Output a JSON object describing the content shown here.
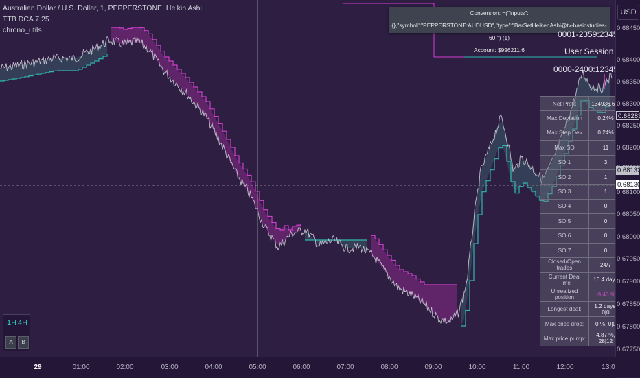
{
  "legend": {
    "symbol": "Australian Dollar / U.S. Dollar, 1, PEPPERSTONE, Heikin Ashi",
    "indicator1": "TTB DCA 7.25",
    "indicator2": "chrono_utils"
  },
  "currency_button": "USD",
  "conversion_box": {
    "line1": "Conversion: =(\"inputs\":{},\"symbol\":\"PEPPERSTONE:AUDUSD\",\"type\":\"BarSetHeikenAshi@tv-basicstudies-60!\") (1)",
    "line2": "Account: $996211.6"
  },
  "session": {
    "line_top": "0001-2359:23456",
    "user_session": "User Session",
    "line_bottom": "0000-2400:1234567"
  },
  "price_axis": {
    "ticks": [
      "0.68450",
      "0.68400",
      "0.68350",
      "0.68300",
      "0.68250",
      "0.68200",
      "0.68150",
      "0.68100",
      "0.68050",
      "0.68000",
      "0.67950",
      "0.67900",
      "0.67850",
      "0.67800",
      "0.67750"
    ],
    "labels": {
      "current_dark": "0.68283",
      "label_grey": "0.68132",
      "label_white": "0.68130"
    }
  },
  "time_axis": {
    "ticks": [
      "29",
      "01:00",
      "02:00",
      "03:00",
      "04:00",
      "05:00",
      "06:00",
      "07:00",
      "08:00",
      "09:00",
      "10:00",
      "11:00",
      "12:00",
      "13:0"
    ]
  },
  "stats": [
    {
      "label": "Net Profit",
      "value": "134936.6%"
    },
    {
      "label": "Max Deviation",
      "value": "0.24%"
    },
    {
      "label": "Max Step Dev",
      "value": "0.24%"
    },
    {
      "label": "Max SO",
      "value": "11"
    },
    {
      "label": "SO 1",
      "value": "3"
    },
    {
      "label": "SO 2",
      "value": "1"
    },
    {
      "label": "SO 3",
      "value": "1"
    },
    {
      "label": "SO 4",
      "value": "0"
    },
    {
      "label": "SO 5",
      "value": "0"
    },
    {
      "label": "SO 6",
      "value": "0"
    },
    {
      "label": "SO 7",
      "value": "0"
    },
    {
      "label": "Closed/Open trades",
      "value": "24/7"
    },
    {
      "label": "Current Deal Time",
      "value": "16.4 days"
    },
    {
      "label": "Unrealized position",
      "value": "-9.43 %"
    },
    {
      "label": "Longest deal:",
      "value": "1.2 days, 0|0"
    },
    {
      "label": "Max price drop:",
      "value": "0 %, 0|0"
    },
    {
      "label": "Max price pump:",
      "value": "4.87 %, 28|12"
    }
  ],
  "timeframes": {
    "tf1": "1H",
    "tf2": "4H",
    "btn_a": "A",
    "btn_b": "B"
  },
  "colors": {
    "background": "#2d1e42",
    "price_line": "#c8c8d2",
    "fill_magenta": "#8a2c8a",
    "fill_teal": "#3a5a6a",
    "line_magenta": "#d43fd0",
    "line_teal": "#2fb8b0",
    "crosshair": "#a0a0b0"
  }
}
